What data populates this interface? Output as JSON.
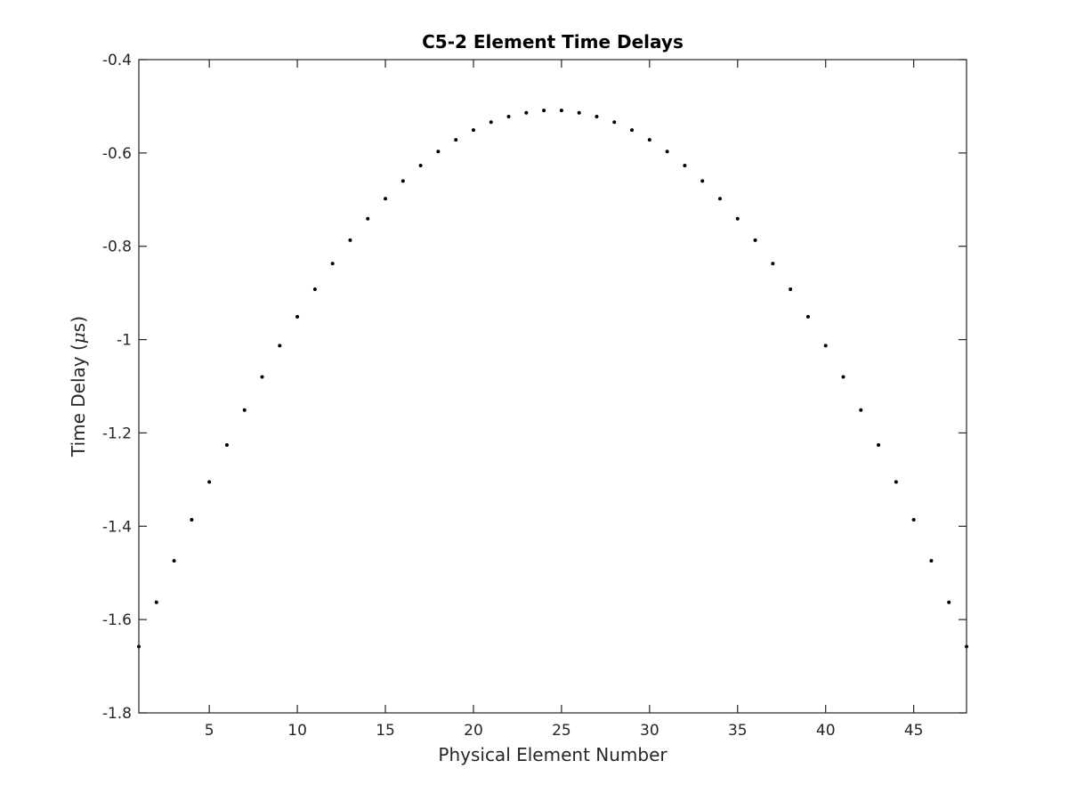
{
  "chart_data": {
    "type": "scatter",
    "title": "C5-2 Element Time Delays",
    "xlabel": "Physical Element Number",
    "ylabel_prefix": "Time Delay (",
    "ylabel_mu": "μ",
    "ylabel_suffix": "s)",
    "xlim": [
      1,
      48
    ],
    "ylim": [
      -1.8,
      -0.4
    ],
    "xticks": [
      5,
      10,
      15,
      20,
      25,
      30,
      35,
      40,
      45
    ],
    "xtick_labels": [
      "5",
      "10",
      "15",
      "20",
      "25",
      "30",
      "35",
      "40",
      "45"
    ],
    "yticks": [
      -1.8,
      -1.6,
      -1.4,
      -1.2,
      -1.0,
      -0.8,
      -0.6,
      -0.4
    ],
    "ytick_labels": [
      "-1.8",
      "-1.6",
      "-1.4",
      "-1.2",
      "-1",
      "-0.8",
      "-0.6",
      "-0.4"
    ],
    "grid": false,
    "legend": "none",
    "marker_color": "#000000",
    "x": [
      1,
      2,
      3,
      4,
      5,
      6,
      7,
      8,
      9,
      10,
      11,
      12,
      13,
      14,
      15,
      16,
      17,
      18,
      19,
      20,
      21,
      22,
      23,
      24,
      25,
      26,
      27,
      28,
      29,
      30,
      31,
      32,
      33,
      34,
      35,
      36,
      37,
      38,
      39,
      40,
      41,
      42,
      43,
      44,
      45,
      46,
      47,
      48
    ],
    "y": [
      -1.658,
      -1.563,
      -1.474,
      -1.386,
      -1.305,
      -1.226,
      -1.151,
      -1.08,
      -1.013,
      -0.951,
      -0.892,
      -0.837,
      -0.787,
      -0.741,
      -0.698,
      -0.66,
      -0.627,
      -0.597,
      -0.572,
      -0.551,
      -0.534,
      -0.522,
      -0.514,
      -0.509,
      -0.509,
      -0.514,
      -0.522,
      -0.534,
      -0.551,
      -0.572,
      -0.597,
      -0.627,
      -0.66,
      -0.698,
      -0.741,
      -0.787,
      -0.837,
      -0.892,
      -0.951,
      -1.013,
      -1.08,
      -1.151,
      -1.226,
      -1.305,
      -1.386,
      -1.474,
      -1.563,
      -1.658
    ]
  }
}
